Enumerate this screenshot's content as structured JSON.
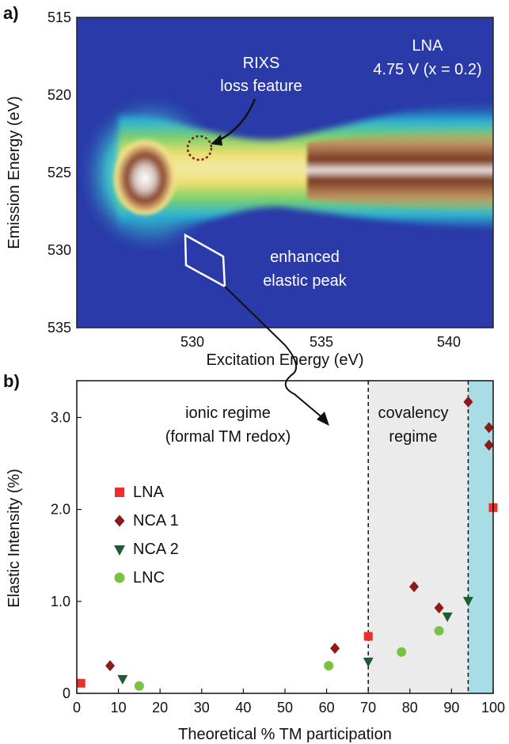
{
  "panel_a": {
    "label": "a)",
    "xlabel": "Excitation Energy (eV)",
    "ylabel": "Emission Energy (eV)",
    "xticks": [
      530,
      535,
      540
    ],
    "yticks": [
      515,
      520,
      525,
      530,
      535
    ],
    "sample_line1": "LNA",
    "sample_line2": "4.75 V (x = 0.2)",
    "rixs_line1": "RIXS",
    "rixs_line2": "loss feature",
    "elastic_line1": "enhanced",
    "elastic_line2": "elastic peak"
  },
  "panel_b": {
    "label": "b)",
    "xlabel": "Theoretical % TM participation",
    "ylabel": "Elastic Intensity (%)",
    "xticks": [
      "0",
      "10",
      "20",
      "30",
      "40",
      "50",
      "60",
      "70",
      "80",
      "90",
      "100"
    ],
    "yticks": [
      "0",
      "1.0",
      "2.0",
      "3.0"
    ],
    "ionic_line1": "ionic regime",
    "ionic_line2": "(formal TM redox)",
    "cov_line1": "covalency",
    "cov_line2": "regime"
  },
  "colors": {
    "LNA": "#e8312a",
    "NCA 1": "#8c1a1a",
    "NCA 2": "#1f5a32",
    "LNC": "#7cc242",
    "covalency_bg": "#ebebeb",
    "high_bg": "#a8dde6"
  },
  "chart_data": [
    {
      "type": "heatmap",
      "xlabel": "Excitation Energy (eV)",
      "ylabel": "Emission Energy (eV)",
      "xlim": [
        525.8,
        542
      ],
      "ylim": [
        535,
        515
      ],
      "features": [
        {
          "name": "RIXS loss feature",
          "x": 530.8,
          "y": 523.5
        },
        {
          "name": "enhanced elastic peak",
          "x": 531.0,
          "y": 531.0
        }
      ]
    },
    {
      "type": "scatter",
      "xlabel": "Theoretical % TM participation",
      "ylabel": "Elastic Intensity (%)",
      "xlim": [
        0,
        100
      ],
      "ylim": [
        0,
        3.4
      ],
      "regions": [
        {
          "name": "ionic regime (formal TM redox)",
          "x": [
            0,
            70
          ]
        },
        {
          "name": "covalency regime",
          "x": [
            70,
            94
          ]
        },
        {
          "x": [
            94,
            100
          ]
        }
      ],
      "series": [
        {
          "name": "LNA",
          "marker": "square",
          "points": [
            [
              1,
              0.11
            ],
            [
              70,
              0.62
            ],
            [
              100,
              2.02
            ]
          ]
        },
        {
          "name": "NCA 1",
          "marker": "diamond",
          "points": [
            [
              8,
              0.3
            ],
            [
              62,
              0.49
            ],
            [
              81,
              1.16
            ],
            [
              87,
              0.93
            ],
            [
              94,
              3.17
            ],
            [
              99,
              2.89
            ],
            [
              99,
              2.7
            ]
          ]
        },
        {
          "name": "NCA 2",
          "marker": "triangle-down",
          "points": [
            [
              11,
              0.16
            ],
            [
              70,
              0.35
            ],
            [
              89,
              0.84
            ],
            [
              94,
              1.01
            ]
          ]
        },
        {
          "name": "LNC",
          "marker": "circle",
          "points": [
            [
              15,
              0.08
            ],
            [
              60.5,
              0.3
            ],
            [
              78,
              0.45
            ],
            [
              87,
              0.68
            ]
          ]
        }
      ]
    }
  ]
}
